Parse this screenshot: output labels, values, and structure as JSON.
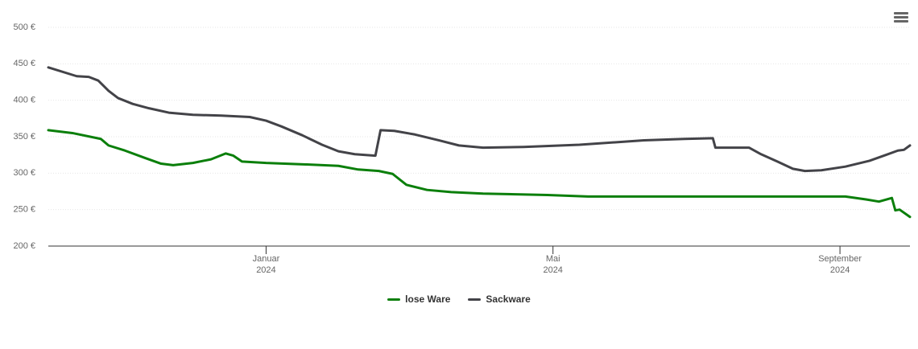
{
  "chart_data": {
    "type": "line",
    "xlim": [
      2023.747,
      2024.748
    ],
    "xticks": [
      {
        "value": 2024.0,
        "label": "Januar\n2024"
      },
      {
        "value": 2024.3333,
        "label": "Mai\n2024"
      },
      {
        "value": 2024.6667,
        "label": "September\n2024"
      }
    ],
    "ylim": [
      200,
      500
    ],
    "yticks": [
      {
        "value": 200,
        "label": "200 €"
      },
      {
        "value": 250,
        "label": "250 €"
      },
      {
        "value": 300,
        "label": "300 €"
      },
      {
        "value": 350,
        "label": "350 €"
      },
      {
        "value": 400,
        "label": "400 €"
      },
      {
        "value": 450,
        "label": "450 €"
      },
      {
        "value": 500,
        "label": "500 €"
      }
    ],
    "grid": true,
    "legend": "bottom",
    "series": [
      {
        "name": "lose Ware",
        "color": "#0b7f0b",
        "x": [
          2023.747,
          2023.775,
          2023.808,
          2023.817,
          2023.836,
          2023.859,
          2023.878,
          2023.892,
          2023.915,
          2023.936,
          2023.953,
          2023.962,
          2023.972,
          2024.0,
          2024.046,
          2024.084,
          2024.107,
          2024.131,
          2024.147,
          2024.163,
          2024.187,
          2024.215,
          2024.252,
          2024.327,
          2024.374,
          2024.533,
          2024.673,
          2024.697,
          2024.712,
          2024.727,
          2024.731,
          2024.736,
          2024.748
        ],
        "values": [
          359,
          355,
          347,
          338,
          331,
          321,
          313,
          311,
          314,
          319,
          327,
          324,
          316,
          314,
          312,
          310,
          305,
          303,
          299,
          284,
          277,
          274,
          272,
          270,
          268,
          268,
          268,
          264,
          261,
          266,
          249,
          250,
          240
        ]
      },
      {
        "name": "Sackware",
        "color": "#434348",
        "x": [
          2023.747,
          2023.78,
          2023.794,
          2023.805,
          2023.817,
          2023.828,
          2023.845,
          2023.864,
          2023.887,
          2023.915,
          2023.948,
          2023.981,
          2024.0,
          2024.018,
          2024.042,
          2024.065,
          2024.084,
          2024.103,
          2024.127,
          2024.133,
          2024.149,
          2024.173,
          2024.201,
          2024.224,
          2024.252,
          2024.299,
          2024.364,
          2024.439,
          2024.486,
          2024.519,
          2024.522,
          2024.561,
          2024.575,
          2024.594,
          2024.612,
          2024.626,
          2024.645,
          2024.673,
          2024.701,
          2024.72,
          2024.734,
          2024.741,
          2024.748
        ],
        "values": [
          445,
          433,
          432,
          427,
          413,
          403,
          395,
          389,
          383,
          380,
          379,
          377,
          372,
          364,
          352,
          339,
          330,
          326,
          324,
          359,
          358,
          353,
          345,
          338,
          335,
          336,
          339,
          345,
          347,
          348,
          335,
          335,
          326,
          316,
          306,
          303,
          304,
          309,
          317,
          325,
          331,
          332,
          338
        ]
      }
    ]
  }
}
